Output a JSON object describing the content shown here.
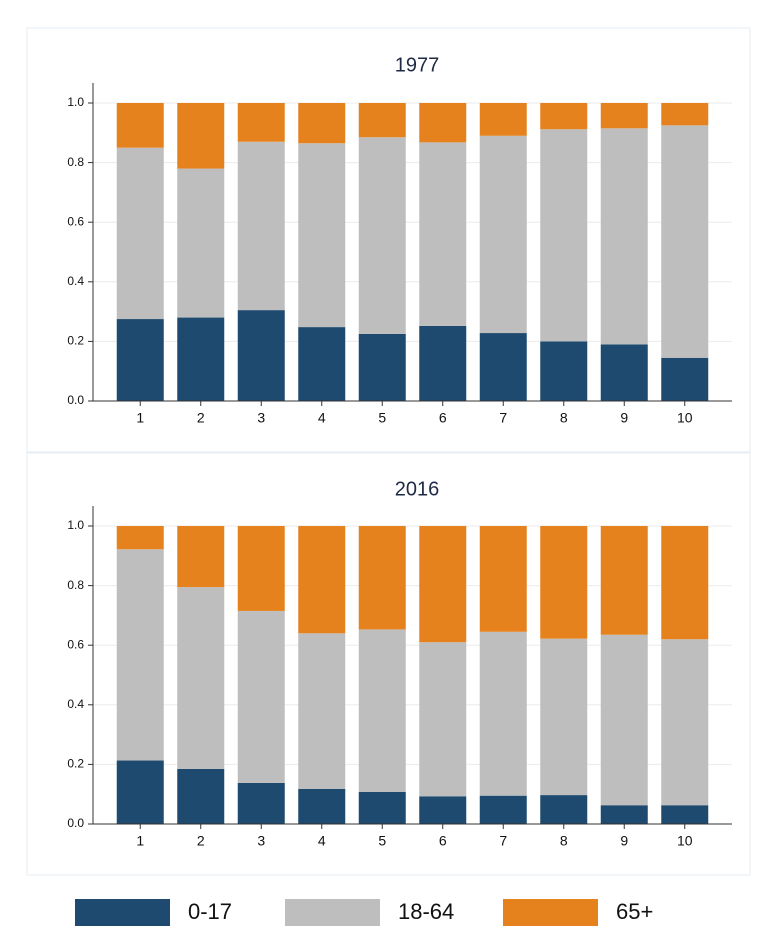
{
  "chart_data": [
    {
      "type": "stacked-bar",
      "title": "1977",
      "categories": [
        "1",
        "2",
        "3",
        "4",
        "5",
        "6",
        "7",
        "8",
        "9",
        "10"
      ],
      "series": [
        {
          "color": "#1d4a6e",
          "values": [
            0.275,
            0.28,
            0.305,
            0.248,
            0.225,
            0.252,
            0.228,
            0.2,
            0.19,
            0.145
          ]
        },
        {
          "color": "#bebebe",
          "values": [
            0.575,
            0.5,
            0.565,
            0.617,
            0.66,
            0.616,
            0.662,
            0.712,
            0.725,
            0.78
          ]
        },
        {
          "color": "#e6821e",
          "values": [
            0.15,
            0.22,
            0.13,
            0.135,
            0.115,
            0.132,
            0.11,
            0.088,
            0.085,
            0.075
          ]
        }
      ],
      "ylim": [
        0,
        1
      ],
      "yticks": [
        {
          "value": 0,
          "label": "0.0"
        },
        0.2,
        0.4,
        0.6,
        0.8,
        {
          "value": 1,
          "label": "1.0"
        }
      ],
      "grid": true
    },
    {
      "type": "stacked-bar",
      "title": "2016",
      "categories": [
        "1",
        "2",
        "3",
        "4",
        "5",
        "6",
        "7",
        "8",
        "9",
        "10"
      ],
      "series": [
        {
          "color": "#1d4a6e",
          "values": [
            0.213,
            0.185,
            0.138,
            0.118,
            0.108,
            0.093,
            0.095,
            0.097,
            0.063,
            0.063
          ]
        },
        {
          "color": "#bebebe",
          "values": [
            0.709,
            0.61,
            0.577,
            0.522,
            0.545,
            0.517,
            0.55,
            0.525,
            0.572,
            0.557
          ]
        },
        {
          "color": "#e6821e",
          "values": [
            0.078,
            0.205,
            0.285,
            0.36,
            0.347,
            0.39,
            0.355,
            0.378,
            0.365,
            0.38
          ]
        }
      ],
      "ylim": [
        0,
        1
      ],
      "yticks": [
        {
          "value": 0,
          "label": "0.0"
        },
        0.2,
        0.4,
        0.6,
        0.8,
        {
          "value": 1,
          "label": "1.0"
        }
      ],
      "grid": true
    }
  ],
  "legend": [
    {
      "name": "0-17",
      "color": "#1d4a6e"
    },
    {
      "name": "18-64",
      "color": "#bebebe"
    },
    {
      "name": "65+",
      "color": "#e6821e"
    }
  ]
}
